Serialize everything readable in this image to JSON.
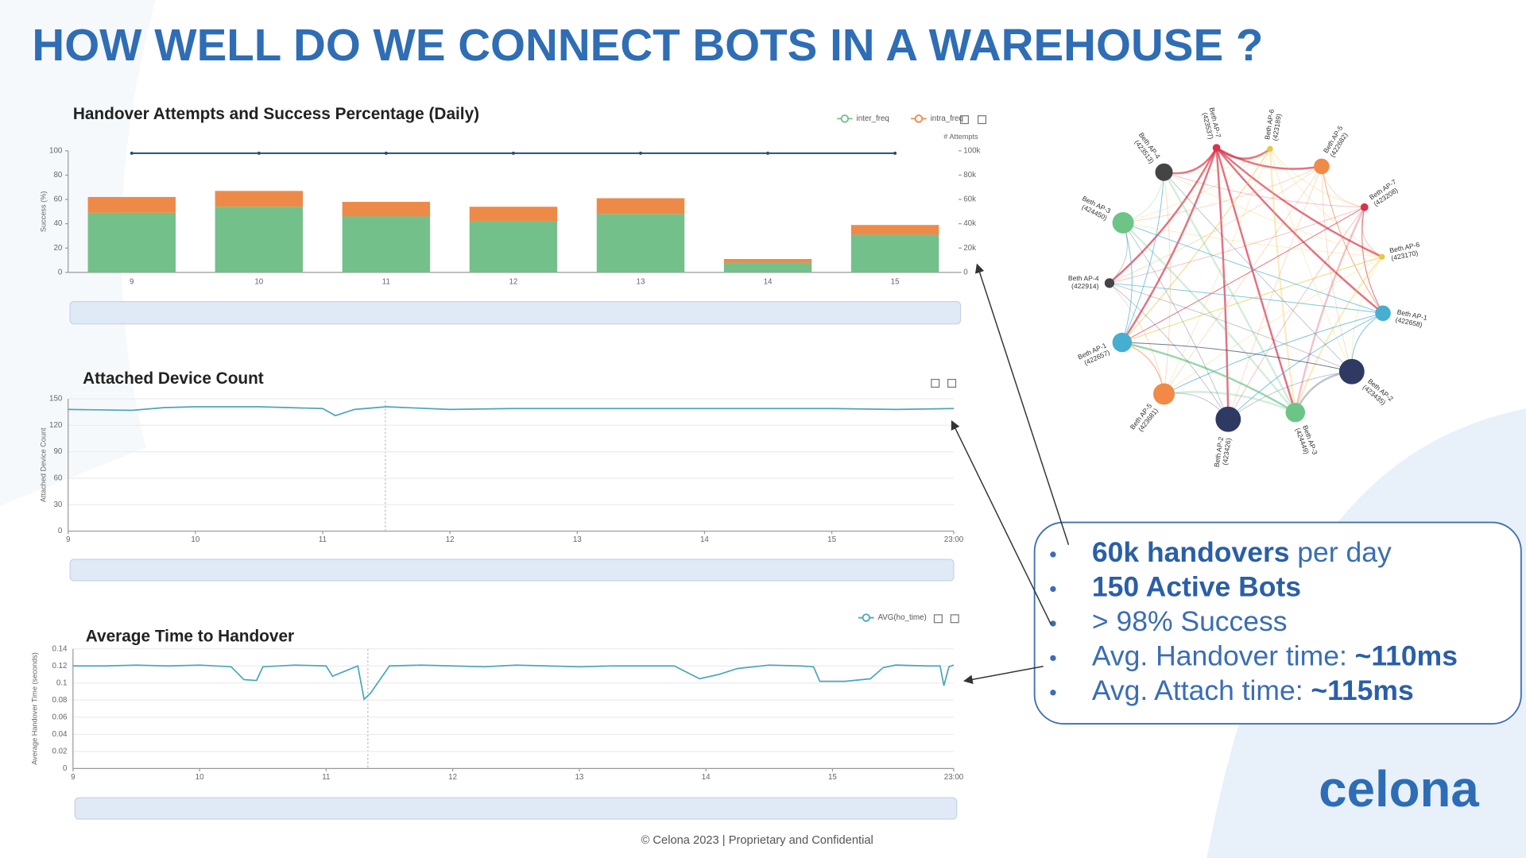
{
  "title": "HOW WELL DO WE CONNECT BOTS IN A WAREHOUSE ?",
  "chart_data": [
    {
      "type": "bar",
      "title": "Handover Attempts and Success Percentage (Daily)",
      "ylabel": "Success (%)",
      "y2label": "# Attempts",
      "categories": [
        "9",
        "10",
        "11",
        "12",
        "13",
        "14",
        "15"
      ],
      "ylim": [
        0,
        100
      ],
      "yticks": [
        0,
        20,
        40,
        60,
        80,
        100
      ],
      "y2lim": [
        0,
        100000
      ],
      "y2ticks": [
        0,
        {
          "value": 20000,
          "label": "20k"
        },
        {
          "value": 40000,
          "label": "40k"
        },
        {
          "value": 60000,
          "label": "60k"
        },
        {
          "value": 80000,
          "label": "80k"
        },
        {
          "value": 100000,
          "label": "100k"
        }
      ],
      "grid": false,
      "series": [
        {
          "name": "inter_freq",
          "type": "bar",
          "axis": "y2",
          "color": "#74c08a",
          "values": [
            49000,
            54000,
            46000,
            42000,
            48000,
            8000,
            31000
          ]
        },
        {
          "name": "intra_freq",
          "type": "bar",
          "axis": "y2",
          "color": "#ee8a48",
          "values": [
            13000,
            13000,
            12000,
            12000,
            13000,
            3000,
            8000
          ]
        },
        {
          "type": "line",
          "color": "#2c4a78",
          "values": [
            98,
            98,
            98,
            98,
            98,
            98,
            98
          ]
        }
      ]
    },
    {
      "type": "line",
      "title": "Attached Device Count",
      "ylabel": "Attached Device Count",
      "x": [
        9,
        9.5,
        9.75,
        10,
        10.5,
        11,
        11.1,
        11.25,
        11.5,
        12,
        12.5,
        13,
        13.5,
        14,
        14.5,
        15,
        15.5,
        15.958
      ],
      "xlim": [
        9,
        15.958
      ],
      "xticks": [
        9,
        10,
        11,
        12,
        13,
        14,
        15,
        {
          "value": 15.958,
          "label": "23:00"
        }
      ],
      "ylim": [
        0,
        150
      ],
      "yticks": [
        0,
        30,
        60,
        90,
        120,
        150
      ],
      "grid": true,
      "series": [
        {
          "type": "line",
          "color": "#4aa6b8",
          "values": [
            138,
            137,
            140,
            141,
            141,
            139,
            131,
            138,
            141,
            138,
            139,
            139,
            139,
            139,
            139,
            139,
            138,
            139
          ]
        }
      ]
    },
    {
      "type": "line",
      "title": "Average Time to Handover",
      "ylabel": "Average Handover Time (seconds)",
      "x": [
        9,
        9.25,
        9.5,
        9.75,
        10,
        10.25,
        10.35,
        10.45,
        10.5,
        10.75,
        11,
        11.05,
        11.25,
        11.3,
        11.35,
        11.5,
        11.75,
        12,
        12.25,
        12.5,
        12.75,
        13,
        13.25,
        13.5,
        13.75,
        13.95,
        14.1,
        14.25,
        14.5,
        14.75,
        14.85,
        14.9,
        15.1,
        15.3,
        15.4,
        15.5,
        15.75,
        15.85,
        15.88,
        15.92,
        15.958
      ],
      "xlim": [
        9,
        15.958
      ],
      "xticks": [
        9,
        10,
        11,
        12,
        13,
        14,
        15,
        {
          "value": 15.958,
          "label": "23:00"
        }
      ],
      "ylim": [
        0,
        0.14
      ],
      "yticks": [
        0,
        0.02,
        0.04,
        0.06,
        0.08,
        0.1,
        0.12,
        0.14
      ],
      "grid": true,
      "series": [
        {
          "name": "AVG(ho_time)",
          "type": "line",
          "color": "#4aa6b8",
          "values": [
            0.12,
            0.12,
            0.121,
            0.12,
            0.121,
            0.119,
            0.104,
            0.103,
            0.119,
            0.121,
            0.12,
            0.108,
            0.12,
            0.081,
            0.088,
            0.12,
            0.121,
            0.12,
            0.119,
            0.121,
            0.12,
            0.119,
            0.12,
            0.12,
            0.12,
            0.105,
            0.11,
            0.117,
            0.121,
            0.12,
            0.119,
            0.102,
            0.102,
            0.105,
            0.118,
            0.121,
            0.12,
            0.12,
            0.097,
            0.119,
            0.121
          ]
        }
      ]
    }
  ],
  "network": {
    "nodes": [
      {
        "name": "Beth AP-7",
        "id": "(423537)",
        "color": "#d8344a"
      },
      {
        "name": "Beth AP-6",
        "id": "(423189)",
        "color": "#e8c640"
      },
      {
        "name": "Beth AP-5",
        "id": "(422682)",
        "color": "#f08a46"
      },
      {
        "name": "Beth AP-7",
        "id": "(423208)",
        "color": "#d8344a"
      },
      {
        "name": "Beth AP-6",
        "id": "(423170)",
        "color": "#e8c640"
      },
      {
        "name": "Beth AP-1",
        "id": "(422658)",
        "color": "#46aed0"
      },
      {
        "name": "Beth AP-2",
        "id": "(423435)",
        "color": "#2f3a62"
      },
      {
        "name": "Beth AP-3",
        "id": "(424449)",
        "color": "#6cc587"
      },
      {
        "name": "Beth AP-2",
        "id": "(423426)",
        "color": "#2f3a62"
      },
      {
        "name": "Beth AP-5",
        "id": "(423681)",
        "color": "#f08a46"
      },
      {
        "name": "Beth AP-1",
        "id": "(422657)",
        "color": "#46aed0"
      },
      {
        "name": "Beth AP-4",
        "id": "(422914)",
        "color": "#444444"
      },
      {
        "name": "Beth AP-3",
        "id": "(424450)",
        "color": "#6cc587"
      },
      {
        "name": "Beth AP-4",
        "id": "(423513)",
        "color": "#444444"
      }
    ]
  },
  "bullets": [
    [
      {
        "text": "60k handovers",
        "bold": true
      },
      {
        "text": "per day",
        "bold": false
      }
    ],
    [
      {
        "text": "150 Active Bots",
        "bold": true
      }
    ],
    [
      {
        "text": "> 98% Success",
        "bold": false
      }
    ],
    [
      {
        "text": "Avg. Handover time:",
        "bold": false
      },
      {
        "text": "~110ms",
        "bold": true
      }
    ],
    [
      {
        "text": "Avg. Attach time:",
        "bold": false
      },
      {
        "text": "~115ms",
        "bold": true
      }
    ]
  ],
  "footer": "© Celona 2023 | Proprietary and Confidential",
  "logo": "celona"
}
